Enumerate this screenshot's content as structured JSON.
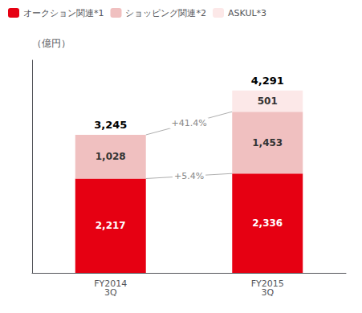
{
  "chart_data": {
    "type": "bar",
    "stacked": true,
    "categories": [
      "FY2014\n3Q",
      "FY2015\n3Q"
    ],
    "series": [
      {
        "name": "オークション関連*1",
        "color": "#e60012",
        "values": [
          2217,
          2336
        ],
        "value_labels": [
          "2,217",
          "2,336"
        ]
      },
      {
        "name": "ショッピング関連*2",
        "color": "#f0c0c0",
        "values": [
          1028,
          1453
        ],
        "value_labels": [
          "1,028",
          "1,453"
        ]
      },
      {
        "name": "ASKUL*3",
        "color": "#fce8e8",
        "values": [
          0,
          501
        ],
        "value_labels": [
          null,
          "501"
        ]
      }
    ],
    "totals": {
      "values": [
        3245,
        4291
      ],
      "labels": [
        "3,245",
        "4,291"
      ]
    },
    "annotations": [
      {
        "text": "+5.4%",
        "series": "オークション関連*1"
      },
      {
        "text": "+41.4%",
        "series": "ショッピング関連*2"
      }
    ],
    "y_label": "（億円）",
    "ylim": [
      0,
      5000
    ],
    "tick_labels": "x",
    "grid": false,
    "data_labels": true,
    "legend": "upper left"
  }
}
